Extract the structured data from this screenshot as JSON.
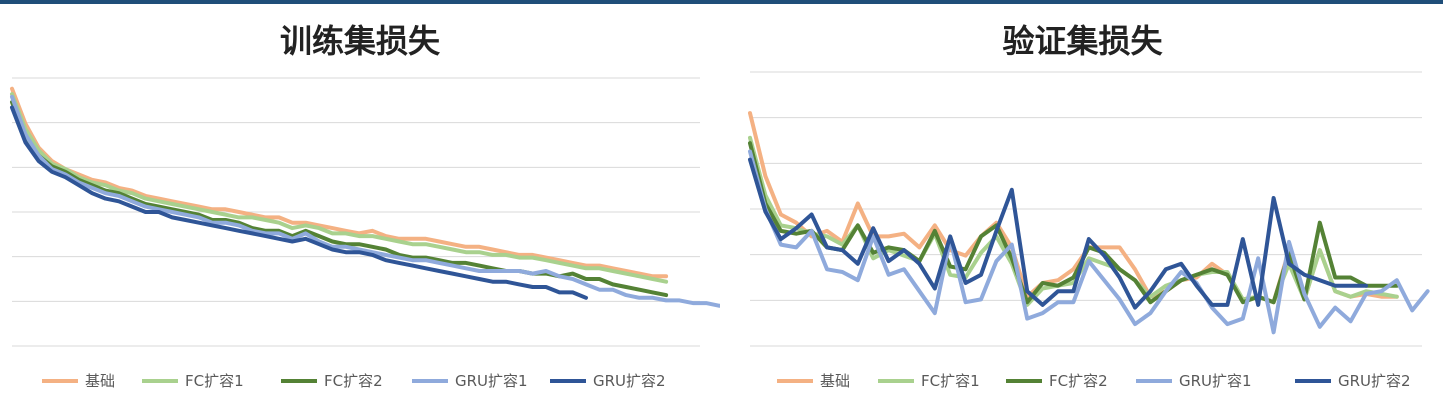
{
  "colors": {
    "top_bar": "#1f4e79",
    "grid": "#d9d9d9",
    "series": [
      "#f4b183",
      "#a9d18e",
      "#548235",
      "#8faadc",
      "#2f5597"
    ]
  },
  "chart_data": [
    {
      "type": "line",
      "title": "训练集损失",
      "xlabel": "",
      "ylabel": "",
      "ylim": [
        0,
        100
      ],
      "grid": true,
      "legend_position": "bottom",
      "series": [
        {
          "name": "基础",
          "values": [
            96,
            83,
            74,
            69,
            66,
            64,
            62,
            61,
            59,
            58,
            56,
            55,
            54,
            53,
            52,
            51,
            51,
            50,
            49,
            48,
            48,
            46,
            46,
            45,
            44,
            43,
            42,
            43,
            41,
            40,
            40,
            40,
            39,
            38,
            37,
            37,
            36,
            35,
            34,
            34,
            33,
            32,
            31,
            30,
            30,
            29,
            28,
            27,
            26,
            26
          ]
        },
        {
          "name": "FC扩容1",
          "values": [
            94,
            81,
            73,
            68,
            66,
            63,
            61,
            60,
            58,
            57,
            55,
            54,
            53,
            52,
            51,
            50,
            49,
            48,
            48,
            47,
            46,
            44,
            45,
            44,
            42,
            42,
            41,
            41,
            40,
            39,
            38,
            38,
            37,
            36,
            35,
            35,
            34,
            34,
            33,
            33,
            32,
            31,
            30,
            29,
            29,
            28,
            27,
            26,
            25,
            24
          ]
        },
        {
          "name": "FC扩容2",
          "values": [
            91,
            78,
            71,
            67,
            65,
            62,
            60,
            58,
            57,
            55,
            53,
            52,
            51,
            50,
            49,
            47,
            47,
            46,
            44,
            43,
            43,
            41,
            43,
            41,
            39,
            38,
            38,
            37,
            36,
            34,
            33,
            33,
            32,
            31,
            31,
            30,
            29,
            28,
            28,
            27,
            27,
            26,
            27,
            25,
            25,
            23,
            22,
            21,
            20,
            19
          ]
        },
        {
          "name": "GRU扩容1",
          "values": [
            93,
            79,
            71,
            66,
            64,
            61,
            59,
            57,
            56,
            54,
            52,
            51,
            50,
            49,
            48,
            46,
            46,
            45,
            43,
            42,
            42,
            40,
            42,
            39,
            37,
            37,
            36,
            35,
            34,
            33,
            32,
            32,
            31,
            30,
            29,
            28,
            28,
            28,
            28,
            27,
            28,
            26,
            25,
            23,
            21,
            21,
            19,
            18,
            18,
            17,
            17,
            16,
            16,
            15,
            15
          ]
        },
        {
          "name": "GRU扩容2",
          "values": [
            89,
            76,
            69,
            65,
            63,
            60,
            57,
            55,
            54,
            52,
            50,
            50,
            48,
            47,
            46,
            45,
            44,
            43,
            42,
            41,
            40,
            39,
            40,
            38,
            36,
            35,
            35,
            34,
            32,
            31,
            30,
            29,
            28,
            27,
            26,
            25,
            24,
            24,
            23,
            22,
            22,
            20,
            20,
            18
          ]
        }
      ]
    },
    {
      "type": "line",
      "title": "验证集损失",
      "xlabel": "",
      "ylabel": "",
      "ylim": [
        0,
        100
      ],
      "grid": true,
      "legend_position": "bottom",
      "series": [
        {
          "name": "基础",
          "values": [
            85,
            62,
            48,
            45,
            40,
            42,
            38,
            52,
            40,
            40,
            41,
            36,
            44,
            35,
            33,
            40,
            45,
            36,
            18,
            23,
            24,
            28,
            36,
            36,
            36,
            28,
            18,
            20,
            24,
            25,
            30,
            26,
            17,
            18,
            16,
            35,
            17,
            35,
            20,
            18,
            19,
            18,
            18
          ]
        },
        {
          "name": "FC扩容1",
          "values": [
            76,
            55,
            44,
            43,
            41,
            40,
            37,
            44,
            32,
            35,
            33,
            31,
            41,
            26,
            25,
            34,
            40,
            30,
            15,
            21,
            22,
            23,
            32,
            30,
            28,
            24,
            18,
            22,
            24,
            26,
            27,
            27,
            17,
            18,
            16,
            30,
            17,
            35,
            20,
            18,
            20,
            19,
            18
          ]
        },
        {
          "name": "FC扩容2",
          "values": [
            74,
            52,
            42,
            41,
            42,
            36,
            35,
            44,
            34,
            36,
            35,
            31,
            42,
            29,
            28,
            40,
            44,
            32,
            16,
            23,
            22,
            25,
            36,
            34,
            28,
            24,
            16,
            20,
            24,
            26,
            28,
            26,
            16,
            18,
            16,
            34,
            17,
            45,
            25,
            25,
            22,
            22,
            22
          ]
        },
        {
          "name": "GRU扩容1",
          "values": [
            71,
            50,
            37,
            36,
            42,
            28,
            27,
            24,
            40,
            26,
            28,
            20,
            12,
            39,
            16,
            17,
            31,
            37,
            10,
            12,
            16,
            16,
            31,
            24,
            17,
            8,
            12,
            20,
            27,
            23,
            14,
            8,
            10,
            32,
            5,
            38,
            19,
            7,
            14,
            9,
            19,
            20,
            24,
            13,
            20
          ]
        },
        {
          "name": "GRU扩容2",
          "values": [
            68,
            49,
            39,
            43,
            48,
            36,
            35,
            30,
            43,
            31,
            35,
            30,
            21,
            40,
            23,
            26,
            42,
            57,
            20,
            15,
            20,
            20,
            39,
            33,
            25,
            14,
            20,
            28,
            30,
            22,
            15,
            15,
            39,
            15,
            54,
            30,
            26,
            24,
            22,
            22,
            22
          ]
        }
      ]
    }
  ]
}
